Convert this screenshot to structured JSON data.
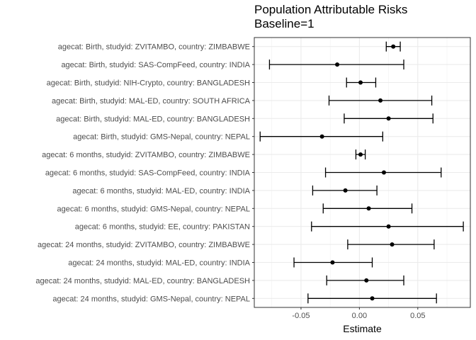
{
  "chart_data": {
    "type": "scatter",
    "title": "Population Attributable Risks",
    "subtitle": "Baseline=1",
    "xlabel": "Estimate",
    "ylabel": "",
    "xlim": [
      -0.09,
      0.095
    ],
    "x_ticks": [
      "-0.05",
      "0.00",
      "0.05"
    ],
    "x_tick_values": [
      -0.05,
      0.0,
      0.05
    ],
    "grid": true,
    "point_color": "#000000",
    "categories": [
      "agecat: Birth, studyid: ZVITAMBO, country: ZIMBABWE",
      "agecat: Birth, studyid: SAS-CompFeed, country: INDIA",
      "agecat: Birth, studyid: NIH-Crypto, country: BANGLADESH",
      "agecat: Birth, studyid: MAL-ED, country: SOUTH AFRICA",
      "agecat: Birth, studyid: MAL-ED, country: BANGLADESH",
      "agecat: Birth, studyid: GMS-Nepal, country: NEPAL",
      "agecat: 6 months, studyid: ZVITAMBO, country: ZIMBABWE",
      "agecat: 6 months, studyid: SAS-CompFeed, country: INDIA",
      "agecat: 6 months, studyid: MAL-ED, country: INDIA",
      "agecat: 6 months, studyid: GMS-Nepal, country: NEPAL",
      "agecat: 6 months, studyid: EE, country: PAKISTAN",
      "agecat: 24 months, studyid: ZVITAMBO, country: ZIMBABWE",
      "agecat: 24 months, studyid: MAL-ED, country: INDIA",
      "agecat: 24 months, studyid: MAL-ED, country: BANGLADESH",
      "agecat: 24 months, studyid: GMS-Nepal, country: NEPAL"
    ],
    "series": [
      {
        "estimates": [
          0.029,
          -0.019,
          0.001,
          0.018,
          0.025,
          -0.032,
          0.001,
          0.021,
          -0.012,
          0.008,
          0.025,
          0.028,
          -0.023,
          0.006,
          0.011
        ],
        "lower": [
          0.023,
          -0.077,
          -0.011,
          -0.026,
          -0.013,
          -0.085,
          -0.003,
          -0.029,
          -0.04,
          -0.031,
          -0.041,
          -0.01,
          -0.056,
          -0.028,
          -0.044
        ],
        "upper": [
          0.035,
          0.038,
          0.014,
          0.062,
          0.063,
          0.02,
          0.005,
          0.07,
          0.015,
          0.045,
          0.089,
          0.064,
          0.011,
          0.038,
          0.066
        ]
      }
    ]
  }
}
